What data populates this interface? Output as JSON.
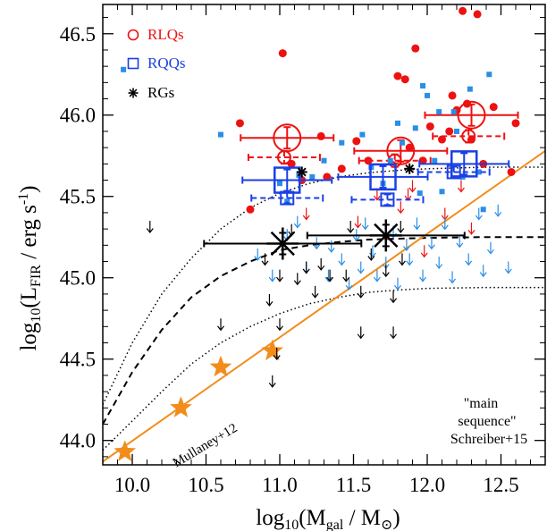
{
  "chart_data": {
    "type": "scatter",
    "xlabel": "log10(Mgal / M⊙)",
    "ylabel": "log10(LFIR / erg s-1)",
    "xlim": [
      9.8,
      12.8
    ],
    "ylim": [
      43.85,
      46.68
    ],
    "x_ticks": [
      "10.0",
      "10.5",
      "11.0",
      "11.5",
      "12.0",
      "12.5"
    ],
    "y_ticks": [
      "44.0",
      "44.5",
      "45.0",
      "45.5",
      "46.0",
      "46.5"
    ],
    "grid": false,
    "legend": {
      "placement": "top-left",
      "items": [
        {
          "label": "RLQs",
          "color": "#ee1111",
          "symbol": "circle"
        },
        {
          "label": "RQQs",
          "color": "#1a3fe6",
          "symbol": "square"
        },
        {
          "label": "RGs",
          "color": "#000000",
          "symbol": "asterisk"
        }
      ]
    },
    "annotations": {
      "main_sequence": [
        "\"main",
        "sequence\"",
        "Schreiber+15"
      ],
      "mullaney": "Mullaney+12"
    },
    "colors": {
      "rlq": "#ee1111",
      "rqq": "#1a3fe6",
      "rqq_points": "#2a8ee6",
      "rg": "#000000",
      "mullaney": "#f28c1b"
    },
    "series": [
      {
        "name": "RLQs",
        "kind": "detections",
        "points": [
          [
            10.73,
            45.95
          ],
          [
            10.8,
            45.42
          ],
          [
            11.02,
            46.38
          ],
          [
            11.08,
            45.7
          ],
          [
            11.15,
            45.6
          ],
          [
            11.28,
            45.87
          ],
          [
            11.32,
            45.62
          ],
          [
            11.42,
            45.67
          ],
          [
            11.52,
            45.84
          ],
          [
            11.6,
            45.72
          ],
          [
            11.8,
            46.24
          ],
          [
            11.85,
            46.22
          ],
          [
            11.88,
            45.8
          ],
          [
            11.92,
            46.41
          ],
          [
            11.97,
            45.72
          ],
          [
            12.02,
            45.93
          ],
          [
            12.1,
            45.85
          ],
          [
            12.15,
            45.9
          ],
          [
            12.17,
            46.12
          ],
          [
            12.2,
            46.03
          ],
          [
            12.24,
            46.64
          ],
          [
            12.27,
            46.07
          ],
          [
            12.3,
            45.85
          ],
          [
            12.34,
            46.62
          ],
          [
            12.38,
            45.7
          ],
          [
            12.45,
            46.05
          ],
          [
            12.57,
            45.65
          ],
          [
            12.6,
            45.95
          ]
        ]
      },
      {
        "name": "RLQs",
        "kind": "upper_limits",
        "points": [
          [
            11.53,
            45.38
          ],
          [
            11.66,
            45.55
          ],
          [
            11.72,
            45.3
          ],
          [
            11.82,
            45.47
          ],
          [
            11.9,
            45.6
          ],
          [
            11.98,
            45.2
          ],
          [
            12.12,
            45.43
          ],
          [
            12.23,
            45.6
          ],
          [
            12.3,
            45.34
          ],
          [
            11.18,
            45.43
          ],
          [
            11.87,
            45.55
          ]
        ]
      },
      {
        "name": "RLQs",
        "kind": "binned_mean",
        "points": [
          [
            11.05,
            45.86
          ],
          [
            11.82,
            45.78
          ],
          [
            12.3,
            46.0
          ]
        ]
      },
      {
        "name": "RLQs",
        "kind": "binned_median",
        "points": [
          [
            11.03,
            45.74
          ],
          [
            11.78,
            45.72
          ],
          [
            12.28,
            45.87
          ]
        ]
      },
      {
        "name": "RQQs",
        "kind": "detections",
        "points": [
          [
            9.94,
            46.28
          ],
          [
            10.6,
            45.88
          ],
          [
            11.0,
            45.58
          ],
          [
            11.05,
            45.47
          ],
          [
            11.13,
            45.63
          ],
          [
            11.22,
            45.62
          ],
          [
            11.3,
            45.72
          ],
          [
            11.42,
            45.83
          ],
          [
            11.56,
            45.88
          ],
          [
            11.62,
            45.68
          ],
          [
            11.7,
            45.58
          ],
          [
            11.75,
            45.72
          ],
          [
            11.8,
            45.95
          ],
          [
            11.83,
            45.83
          ],
          [
            11.92,
            45.92
          ],
          [
            11.95,
            45.52
          ],
          [
            12.0,
            46.12
          ],
          [
            12.05,
            45.72
          ],
          [
            12.08,
            46.02
          ],
          [
            12.1,
            45.53
          ],
          [
            12.18,
            46.02
          ],
          [
            12.2,
            45.9
          ],
          [
            12.24,
            45.62
          ],
          [
            12.29,
            46.16
          ],
          [
            12.35,
            45.65
          ],
          [
            12.38,
            45.42
          ],
          [
            12.42,
            46.25
          ],
          [
            11.97,
            46.18
          ]
        ]
      },
      {
        "name": "RQQs",
        "kind": "upper_limits",
        "points": [
          [
            10.85,
            45.18
          ],
          [
            10.95,
            45.05
          ],
          [
            11.05,
            45.3
          ],
          [
            11.12,
            45.38
          ],
          [
            11.18,
            45.1
          ],
          [
            11.25,
            45.25
          ],
          [
            11.33,
            45.05
          ],
          [
            11.35,
            45.23
          ],
          [
            11.42,
            45.15
          ],
          [
            11.47,
            45.0
          ],
          [
            11.52,
            45.3
          ],
          [
            11.55,
            45.1
          ],
          [
            11.58,
            45.37
          ],
          [
            11.63,
            45.2
          ],
          [
            11.66,
            45.05
          ],
          [
            11.72,
            45.13
          ],
          [
            11.77,
            45.32
          ],
          [
            11.8,
            45.0
          ],
          [
            11.86,
            45.24
          ],
          [
            11.88,
            45.15
          ],
          [
            11.93,
            45.37
          ],
          [
            11.97,
            45.05
          ],
          [
            12.03,
            45.25
          ],
          [
            12.08,
            45.13
          ],
          [
            12.12,
            45.37
          ],
          [
            12.17,
            45.04
          ],
          [
            12.22,
            45.26
          ],
          [
            12.28,
            45.15
          ],
          [
            12.35,
            45.43
          ],
          [
            12.38,
            45.08
          ],
          [
            12.43,
            45.22
          ],
          [
            12.48,
            45.45
          ],
          [
            12.55,
            45.1
          ]
        ]
      },
      {
        "name": "RQQs",
        "kind": "binned_mean",
        "points": [
          [
            11.05,
            45.6
          ],
          [
            11.7,
            45.62
          ],
          [
            12.25,
            45.7
          ]
        ]
      },
      {
        "name": "RQQs",
        "kind": "binned_median",
        "points": [
          [
            11.05,
            45.49
          ],
          [
            11.73,
            45.48
          ],
          [
            12.18,
            45.65
          ]
        ]
      },
      {
        "name": "RGs",
        "kind": "detections",
        "points": [
          [
            11.15,
            45.65
          ],
          [
            11.88,
            45.67
          ]
        ]
      },
      {
        "name": "RGs",
        "kind": "upper_limits",
        "points": [
          [
            10.12,
            45.35
          ],
          [
            10.9,
            45.15
          ],
          [
            10.93,
            44.9
          ],
          [
            11.0,
            45.05
          ],
          [
            11.08,
            45.33
          ],
          [
            11.12,
            45.03
          ],
          [
            11.18,
            45.1
          ],
          [
            11.24,
            44.95
          ],
          [
            11.28,
            45.12
          ],
          [
            11.34,
            45.05
          ],
          [
            11.48,
            45.35
          ],
          [
            11.55,
            44.95
          ],
          [
            11.62,
            45.18
          ],
          [
            11.72,
            45.08
          ],
          [
            11.77,
            44.92
          ],
          [
            11.83,
            45.15
          ],
          [
            10.98,
            44.57
          ],
          [
            11.0,
            44.75
          ],
          [
            11.55,
            44.7
          ],
          [
            11.77,
            44.7
          ],
          [
            10.95,
            44.4
          ],
          [
            11.45,
            45.05
          ],
          [
            10.6,
            44.75
          ],
          [
            11.82,
            45.35
          ]
        ]
      },
      {
        "name": "RGs",
        "kind": "binned_mean",
        "points": [
          [
            11.02,
            45.21
          ],
          [
            11.72,
            45.26
          ]
        ]
      }
    ],
    "curves": {
      "main_sequence_mid": [
        [
          9.8,
          44.1
        ],
        [
          10.0,
          44.42
        ],
        [
          10.2,
          44.68
        ],
        [
          10.4,
          44.88
        ],
        [
          10.6,
          45.01
        ],
        [
          10.8,
          45.1
        ],
        [
          11.0,
          45.17
        ],
        [
          11.2,
          45.2
        ],
        [
          11.4,
          45.22
        ],
        [
          11.6,
          45.235
        ],
        [
          11.8,
          45.24
        ],
        [
          12.0,
          45.245
        ],
        [
          12.4,
          45.25
        ],
        [
          12.8,
          45.25
        ]
      ],
      "main_sequence_upper": [
        [
          9.8,
          44.22
        ],
        [
          10.0,
          44.6
        ],
        [
          10.2,
          44.9
        ],
        [
          10.4,
          45.12
        ],
        [
          10.6,
          45.3
        ],
        [
          10.8,
          45.43
        ],
        [
          11.0,
          45.52
        ],
        [
          11.2,
          45.58
        ],
        [
          11.4,
          45.62
        ],
        [
          11.6,
          45.645
        ],
        [
          11.8,
          45.66
        ],
        [
          12.0,
          45.67
        ],
        [
          12.4,
          45.68
        ],
        [
          12.8,
          45.68
        ]
      ],
      "main_sequence_lower": [
        [
          9.8,
          43.94
        ],
        [
          10.0,
          44.12
        ],
        [
          10.2,
          44.3
        ],
        [
          10.4,
          44.47
        ],
        [
          10.6,
          44.6
        ],
        [
          10.8,
          44.7
        ],
        [
          11.0,
          44.78
        ],
        [
          11.2,
          44.84
        ],
        [
          11.4,
          44.88
        ],
        [
          11.6,
          44.91
        ],
        [
          11.8,
          44.925
        ],
        [
          12.0,
          44.935
        ],
        [
          12.4,
          44.94
        ],
        [
          12.8,
          44.94
        ]
      ],
      "mullaney": [
        [
          9.8,
          43.87
        ],
        [
          12.8,
          45.78
        ]
      ]
    },
    "mullaney_stars": [
      [
        9.95,
        43.93
      ],
      [
        10.33,
        44.2
      ],
      [
        10.6,
        44.45
      ],
      [
        10.95,
        44.55
      ]
    ]
  }
}
